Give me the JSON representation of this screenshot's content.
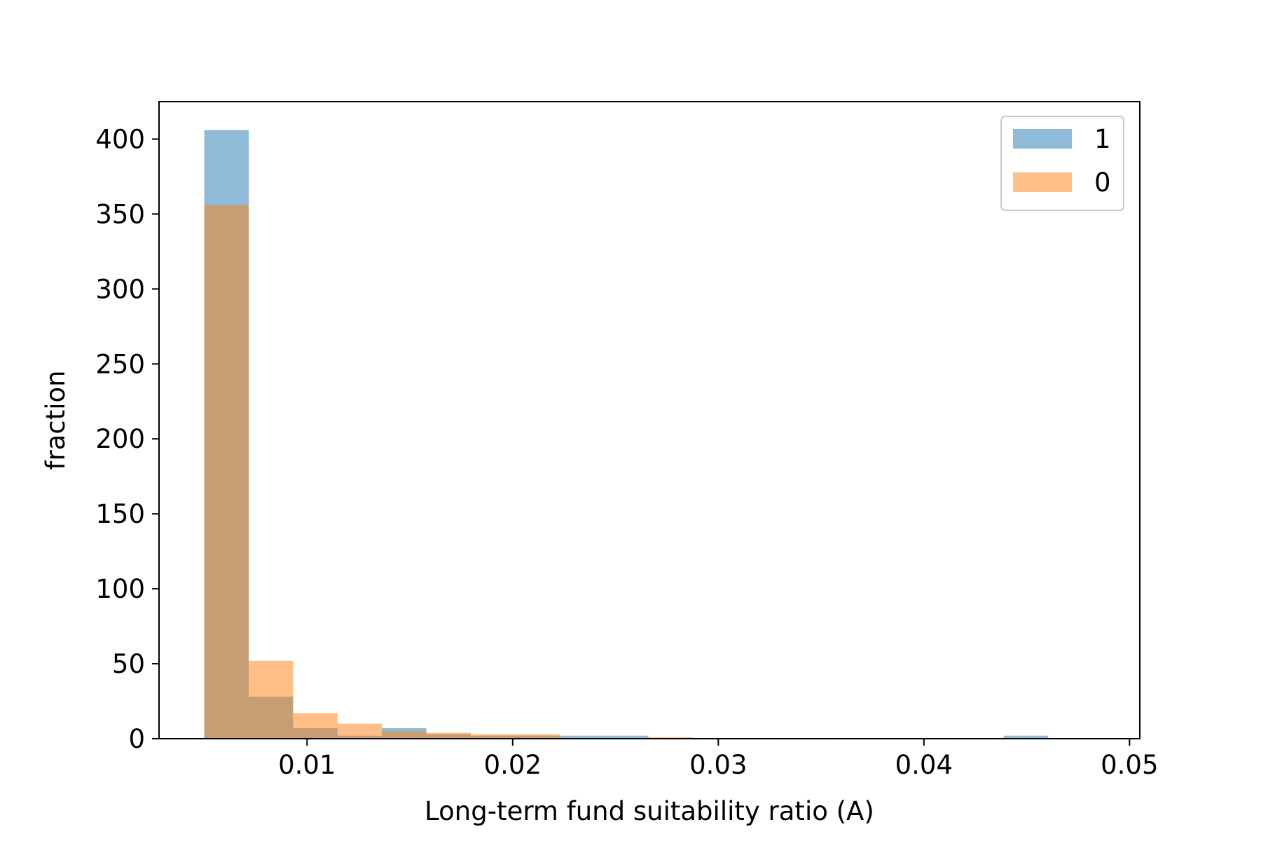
{
  "chart_data": {
    "type": "bar",
    "xlabel": "Long-term fund suitability ratio (A)",
    "ylabel": "fraction",
    "xlim": [
      0.0028,
      0.0505
    ],
    "ylim": [
      0,
      425
    ],
    "xticks": [
      0.01,
      0.02,
      0.03,
      0.04,
      0.05
    ],
    "xtick_labels": [
      "0.01",
      "0.02",
      "0.03",
      "0.04",
      "0.05"
    ],
    "yticks": [
      0,
      50,
      100,
      150,
      200,
      250,
      300,
      350,
      400
    ],
    "ytick_labels": [
      "0",
      "50",
      "100",
      "150",
      "200",
      "250",
      "300",
      "350",
      "400"
    ],
    "grid": false,
    "legend_position": "top-right",
    "series": [
      {
        "name": "1",
        "color": "#1f77b4",
        "bins": [
          0.005,
          0.00716,
          0.00932,
          0.01148,
          0.01364,
          0.0158,
          0.01796,
          0.02012,
          0.02228,
          0.02444,
          0.0266,
          0.02876,
          0.03092,
          0.03308,
          0.03524,
          0.0374,
          0.03956,
          0.04172,
          0.04388,
          0.04604
        ],
        "values": [
          406,
          28,
          7,
          2,
          7,
          3,
          2,
          2,
          2,
          2,
          0,
          0,
          0,
          0,
          0,
          0,
          0,
          0,
          2
        ]
      },
      {
        "name": "0",
        "color": "#ff7f0e",
        "bins": [
          0.005,
          0.00716,
          0.00932,
          0.01148,
          0.01364,
          0.0158,
          0.01796,
          0.02012,
          0.02228,
          0.02444,
          0.0266,
          0.02876,
          0.03092,
          0.03308,
          0.03524,
          0.0374,
          0.03956,
          0.04172,
          0.04388,
          0.04604
        ],
        "values": [
          356,
          52,
          17,
          10,
          5,
          4,
          3,
          3,
          0,
          0,
          1,
          0.5,
          0.5,
          0,
          0.5,
          0.5,
          0.5,
          0,
          0
        ]
      }
    ]
  }
}
